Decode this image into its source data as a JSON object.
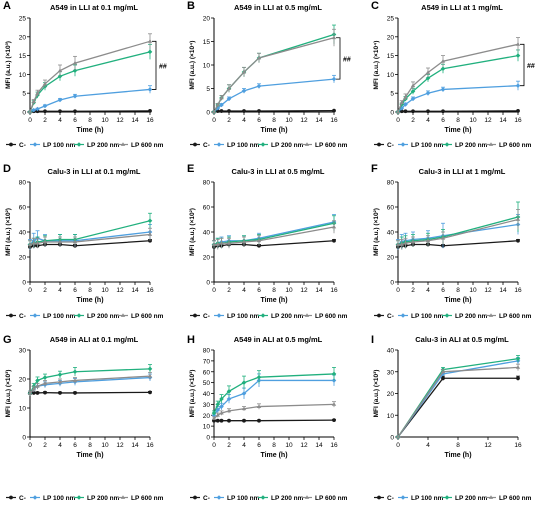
{
  "colors": {
    "C-": "#1a1a1a",
    "LP 100 nm": "#4f9fdf",
    "LP 200 nm": "#21b07e",
    "LP 600 nm": "#8c8c8c"
  },
  "chart_data": [
    {
      "type": "line",
      "letter": "A",
      "title": "A549 in LLI at 0.1 mg/mL",
      "xlabel": "Time (h)",
      "ylabel": "MFI (a.u.) (×10³)",
      "xlim": [
        0,
        16
      ],
      "xticks": [
        0,
        2,
        4,
        6,
        8,
        10,
        12,
        14,
        16
      ],
      "ylim": [
        0,
        25
      ],
      "yticks": [
        0,
        5,
        10,
        15,
        20,
        25
      ],
      "x": [
        0,
        0.5,
        1,
        2,
        4,
        6,
        16
      ],
      "series": [
        {
          "name": "C-",
          "values": [
            0,
            0.2,
            0.2,
            0.2,
            0.2,
            0.2,
            0.3
          ],
          "errors": [
            0,
            0,
            0,
            0,
            0,
            0,
            0
          ]
        },
        {
          "name": "LP 100 nm",
          "values": [
            0,
            0.5,
            0.8,
            1.6,
            3.2,
            4.2,
            6.0
          ],
          "errors": [
            0,
            0.2,
            0.2,
            0.3,
            0.4,
            0.5,
            1.0
          ]
        },
        {
          "name": "LP 200 nm",
          "values": [
            0,
            2.5,
            4.5,
            6.8,
            9.5,
            11.0,
            16.0
          ],
          "errors": [
            0,
            0.5,
            0.8,
            1.0,
            1.2,
            1.5,
            2.0
          ]
        },
        {
          "name": "LP 600 nm",
          "values": [
            0,
            2.8,
            5.0,
            7.5,
            11.0,
            13.0,
            18.8
          ],
          "errors": [
            0,
            0.5,
            0.8,
            1.0,
            1.5,
            1.8,
            2.0
          ]
        }
      ],
      "annotation": "##"
    },
    {
      "type": "line",
      "letter": "B",
      "title": "A549 in LLI at 0.5 mg/mL",
      "xlabel": "Time (h)",
      "ylabel": "MFI (a.u.) (×10⁴)",
      "xlim": [
        0,
        16
      ],
      "xticks": [
        0,
        2,
        4,
        6,
        8,
        10,
        12,
        14,
        16
      ],
      "ylim": [
        0,
        20
      ],
      "yticks": [
        0,
        5,
        10,
        15,
        20
      ],
      "x": [
        0,
        0.5,
        1,
        2,
        4,
        6,
        16
      ],
      "series": [
        {
          "name": "C-",
          "values": [
            0,
            0.2,
            0.2,
            0.2,
            0.2,
            0.2,
            0.3
          ],
          "errors": [
            0,
            0,
            0,
            0,
            0,
            0,
            0
          ]
        },
        {
          "name": "LP 100 nm",
          "values": [
            0,
            0.8,
            1.5,
            2.8,
            4.5,
            5.5,
            7.0
          ],
          "errors": [
            0,
            0.2,
            0.3,
            0.4,
            0.5,
            0.5,
            0.8
          ]
        },
        {
          "name": "LP 200 nm",
          "values": [
            0,
            1.5,
            3.0,
            5.0,
            8.5,
            11.5,
            16.5
          ],
          "errors": [
            0,
            0.3,
            0.5,
            0.8,
            1.0,
            1.0,
            2.0
          ]
        },
        {
          "name": "LP 600 nm",
          "values": [
            0,
            1.5,
            3.0,
            5.0,
            8.5,
            11.5,
            15.8
          ],
          "errors": [
            0,
            0.3,
            0.5,
            0.8,
            1.0,
            1.0,
            1.8
          ]
        }
      ],
      "annotation": "##"
    },
    {
      "type": "line",
      "letter": "C",
      "title": "A549 in LLI at 1 mg/mL",
      "xlabel": "Time (h)",
      "ylabel": "MFI (a.u.) (×10⁴)",
      "xlim": [
        0,
        16
      ],
      "xticks": [
        0,
        2,
        4,
        6,
        8,
        10,
        12,
        14,
        16
      ],
      "ylim": [
        0,
        25
      ],
      "yticks": [
        0,
        5,
        10,
        15,
        20,
        25
      ],
      "x": [
        0,
        0.5,
        1,
        2,
        4,
        6,
        16
      ],
      "series": [
        {
          "name": "C-",
          "values": [
            0,
            0.2,
            0.2,
            0.2,
            0.2,
            0.2,
            0.3
          ],
          "errors": [
            0,
            0,
            0,
            0,
            0,
            0,
            0
          ]
        },
        {
          "name": "LP 100 nm",
          "values": [
            0,
            1.0,
            2.0,
            3.5,
            5.0,
            6.0,
            7.0
          ],
          "errors": [
            0,
            0.3,
            0.4,
            0.5,
            0.6,
            0.6,
            1.2
          ]
        },
        {
          "name": "LP 200 nm",
          "values": [
            0,
            2.0,
            3.5,
            5.5,
            9.0,
            11.5,
            15.0
          ],
          "errors": [
            0,
            0.4,
            0.6,
            0.8,
            1.0,
            1.2,
            1.5
          ]
        },
        {
          "name": "LP 600 nm",
          "values": [
            0,
            2.5,
            4.0,
            7.0,
            10.5,
            13.5,
            18.0
          ],
          "errors": [
            0,
            0.5,
            0.8,
            1.0,
            1.2,
            1.5,
            1.8
          ]
        }
      ],
      "annotation": "##"
    },
    {
      "type": "line",
      "letter": "D",
      "title": "Calu-3 in LLI at 0.1 mg/mL",
      "xlabel": "Time (h)",
      "ylabel": "MFI (a.u.) (×10²)",
      "xlim": [
        0,
        16
      ],
      "xticks": [
        0,
        2,
        4,
        6,
        8,
        10,
        12,
        14,
        16
      ],
      "ylim": [
        0,
        80
      ],
      "yticks": [
        0,
        20,
        40,
        60,
        80
      ],
      "x": [
        0,
        0.5,
        1,
        2,
        4,
        6,
        16
      ],
      "series": [
        {
          "name": "C-",
          "values": [
            28,
            29,
            29,
            30,
            30,
            29,
            33
          ],
          "errors": [
            1,
            1,
            1,
            1,
            1,
            1,
            1
          ]
        },
        {
          "name": "LP 100 nm",
          "values": [
            30,
            33,
            35,
            33,
            33,
            33,
            40
          ],
          "errors": [
            4,
            6,
            6,
            5,
            5,
            5,
            6
          ]
        },
        {
          "name": "LP 200 nm",
          "values": [
            30,
            31,
            32,
            33,
            34,
            34,
            49
          ],
          "errors": [
            3,
            4,
            4,
            4,
            4,
            4,
            6
          ]
        },
        {
          "name": "LP 600 nm",
          "values": [
            30,
            31,
            31,
            32,
            32,
            32,
            38
          ],
          "errors": [
            3,
            4,
            4,
            4,
            4,
            4,
            5
          ]
        }
      ]
    },
    {
      "type": "line",
      "letter": "E",
      "title": "Calu-3 in LLI at 0.5 mg/mL",
      "xlabel": "Time (h)",
      "ylabel": "MFI (a.u.) (×10²)",
      "xlim": [
        0,
        16
      ],
      "xticks": [
        0,
        2,
        4,
        6,
        8,
        10,
        12,
        14,
        16
      ],
      "ylim": [
        0,
        80
      ],
      "yticks": [
        0,
        20,
        40,
        60,
        80
      ],
      "x": [
        0,
        0.5,
        1,
        2,
        4,
        6,
        16
      ],
      "series": [
        {
          "name": "C-",
          "values": [
            28,
            29,
            29,
            30,
            30,
            29,
            33
          ],
          "errors": [
            1,
            1,
            1,
            1,
            1,
            1,
            1
          ]
        },
        {
          "name": "LP 100 nm",
          "values": [
            30,
            31,
            32,
            33,
            33,
            35,
            48
          ],
          "errors": [
            3,
            4,
            4,
            4,
            4,
            4,
            6
          ]
        },
        {
          "name": "LP 200 nm",
          "values": [
            30,
            31,
            31,
            32,
            33,
            34,
            47
          ],
          "errors": [
            3,
            4,
            4,
            4,
            4,
            4,
            6
          ]
        },
        {
          "name": "LP 600 nm",
          "values": [
            30,
            30,
            31,
            31,
            32,
            33,
            44
          ],
          "errors": [
            3,
            4,
            4,
            4,
            4,
            4,
            5
          ]
        }
      ]
    },
    {
      "type": "line",
      "letter": "F",
      "title": "Calu-3 in LLI at 1 mg/mL",
      "xlabel": "Time (h)",
      "ylabel": "MFI (a.u.) (×10²)",
      "xlim": [
        0,
        16
      ],
      "xticks": [
        0,
        2,
        4,
        6,
        8,
        10,
        12,
        14,
        16
      ],
      "ylim": [
        0,
        80
      ],
      "yticks": [
        0,
        20,
        40,
        60,
        80
      ],
      "x": [
        0,
        0.5,
        1,
        2,
        4,
        6,
        16
      ],
      "series": [
        {
          "name": "C-",
          "values": [
            28,
            29,
            29,
            30,
            30,
            29,
            33
          ],
          "errors": [
            1,
            1,
            1,
            1,
            1,
            1,
            1
          ]
        },
        {
          "name": "LP 100 nm",
          "values": [
            30,
            32,
            33,
            34,
            35,
            37,
            46
          ],
          "errors": [
            4,
            6,
            6,
            6,
            6,
            10,
            8
          ]
        },
        {
          "name": "LP 200 nm",
          "values": [
            30,
            31,
            32,
            33,
            34,
            36,
            52
          ],
          "errors": [
            3,
            5,
            5,
            5,
            5,
            6,
            12
          ]
        },
        {
          "name": "LP 600 nm",
          "values": [
            30,
            30,
            31,
            32,
            33,
            35,
            50
          ],
          "errors": [
            3,
            4,
            4,
            4,
            4,
            5,
            8
          ]
        }
      ]
    },
    {
      "type": "line",
      "letter": "G",
      "title": "A549 in ALI at 0.1 mg/mL",
      "xlabel": "Time (h)",
      "ylabel": "MFI (a.u.) (×10³)",
      "xlim": [
        0,
        16
      ],
      "xticks": [
        0,
        2,
        4,
        6,
        8,
        10,
        12,
        14,
        16
      ],
      "ylim": [
        0,
        30
      ],
      "yticks": [
        0,
        10,
        20,
        30
      ],
      "x": [
        0,
        0.5,
        1,
        2,
        4,
        6,
        16
      ],
      "series": [
        {
          "name": "C-",
          "values": [
            15,
            15.2,
            15.2,
            15.3,
            15.2,
            15.2,
            15.4
          ],
          "errors": [
            0.3,
            0.3,
            0.3,
            0.3,
            0.3,
            0.3,
            0.3
          ]
        },
        {
          "name": "LP 100 nm",
          "values": [
            15,
            16.5,
            17.5,
            18,
            18.5,
            19,
            20.5
          ],
          "errors": [
            0.8,
            1.0,
            1.0,
            1.0,
            1.0,
            1.2,
            1.2
          ]
        },
        {
          "name": "LP 200 nm",
          "values": [
            15,
            17.5,
            19.5,
            20.5,
            21.5,
            22.5,
            23.5
          ],
          "errors": [
            0.8,
            1.0,
            1.2,
            1.2,
            1.2,
            1.5,
            1.5
          ]
        },
        {
          "name": "LP 600 nm",
          "values": [
            15,
            16.5,
            17.5,
            18.5,
            19,
            19.5,
            21
          ],
          "errors": [
            0.8,
            1.0,
            1.0,
            1.0,
            1.0,
            1.0,
            1.2
          ]
        }
      ]
    },
    {
      "type": "line",
      "letter": "H",
      "title": "A549 in ALI at 0.5 mg/mL",
      "xlabel": "Time (h)",
      "ylabel": "MFI (a.u.) (×10³)",
      "xlim": [
        0,
        16
      ],
      "xticks": [
        0,
        2,
        4,
        6,
        8,
        10,
        12,
        14,
        16
      ],
      "ylim": [
        0,
        80
      ],
      "yticks": [
        0,
        10,
        20,
        30,
        40,
        50,
        60,
        70,
        80
      ],
      "x": [
        0,
        0.5,
        1,
        2,
        4,
        6,
        16
      ],
      "series": [
        {
          "name": "C-",
          "values": [
            15,
            15,
            15,
            15,
            15,
            15,
            15.5
          ],
          "errors": [
            0.5,
            0.5,
            0.5,
            0.5,
            0.5,
            0.5,
            0.5
          ]
        },
        {
          "name": "LP 100 nm",
          "values": [
            20,
            25,
            28,
            35,
            40,
            52,
            52
          ],
          "errors": [
            2,
            3,
            3,
            4,
            5,
            6,
            5
          ]
        },
        {
          "name": "LP 200 nm",
          "values": [
            22,
            30,
            35,
            42,
            50,
            55,
            58
          ],
          "errors": [
            2,
            3,
            4,
            5,
            6,
            6,
            6
          ]
        },
        {
          "name": "LP 600 nm",
          "values": [
            17,
            20,
            22,
            24,
            26,
            28,
            30
          ],
          "errors": [
            1.5,
            2,
            2,
            2,
            2,
            2.5,
            2.5
          ]
        }
      ]
    },
    {
      "type": "line",
      "letter": "I",
      "title": "Calu-3 in ALI at 0.5 mg/mL",
      "xlabel": "Time (h)",
      "ylabel": "MFI (a.u.) (×10³)",
      "xlim": [
        0,
        16
      ],
      "xticks": [
        0,
        4,
        8,
        12,
        16
      ],
      "ylim": [
        0,
        40
      ],
      "yticks": [
        0,
        10,
        20,
        30,
        40
      ],
      "x": [
        0,
        6,
        16
      ],
      "series": [
        {
          "name": "C-",
          "values": [
            0,
            27,
            27
          ],
          "errors": [
            0,
            1,
            1
          ]
        },
        {
          "name": "LP 100 nm",
          "values": [
            0,
            29,
            35
          ],
          "errors": [
            0,
            1,
            1.5
          ]
        },
        {
          "name": "LP 200 nm",
          "values": [
            0,
            31,
            36
          ],
          "errors": [
            0,
            1,
            1.5
          ]
        },
        {
          "name": "LP 600 nm",
          "values": [
            0,
            30,
            32
          ],
          "errors": [
            0,
            1,
            1.5
          ]
        }
      ]
    }
  ]
}
